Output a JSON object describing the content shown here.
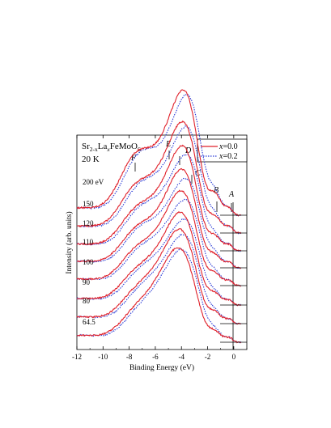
{
  "chart_data": {
    "type": "line",
    "title": "Sr2-xLaxFeMoO6",
    "title_parts": {
      "base1": "Sr",
      "sub1": "2-x",
      "base2": "La",
      "sub2": "x",
      "base3": "FeMoO",
      "sub3": "6"
    },
    "temperature": "20 K",
    "xlabel": "Binding Energy (eV)",
    "ylabel": "Intensity (arb. units)",
    "xlim": [
      -12,
      1
    ],
    "x_ticks": [
      "-12",
      "-10",
      "-8",
      "-6",
      "-4",
      "-2",
      "0"
    ],
    "x_tick_values": [
      -12,
      -10,
      -8,
      -6,
      -4,
      -2,
      0
    ],
    "x_reversed": false,
    "grid": false,
    "legend_placement": "top-right",
    "series": [
      {
        "name": "x=0.0",
        "name_var": "x",
        "name_val": "=0.0",
        "color": "#e0202a",
        "style": "solid"
      },
      {
        "name": "x=0.2",
        "name_var": "x",
        "name_val": "=0.2",
        "color": "#2a3bd6",
        "style": "dotted"
      }
    ],
    "spectra": [
      {
        "label": "200 eV",
        "features": {
          "F": 0.78,
          "E": 0.92,
          "D": 0.88,
          "C": 0.62,
          "B": 0.28,
          "A": 0.1
        },
        "diff": 0.04
      },
      {
        "label": "150",
        "features": {
          "F": 0.62,
          "E": 0.92,
          "D": 0.82,
          "C": 0.52,
          "B": 0.22,
          "A": 0.1
        },
        "diff": 0.05
      },
      {
        "label": "120",
        "features": {
          "F": 0.55,
          "E": 0.9,
          "D": 0.8,
          "C": 0.48,
          "B": 0.2,
          "A": 0.1
        },
        "diff": 0.09
      },
      {
        "label": "110",
        "features": {
          "F": 0.52,
          "E": 0.9,
          "D": 0.76,
          "C": 0.44,
          "B": 0.18,
          "A": 0.09
        },
        "diff": 0.1
      },
      {
        "label": "100",
        "features": {
          "F": 0.48,
          "E": 0.92,
          "D": 0.7,
          "C": 0.4,
          "B": 0.17,
          "A": 0.08
        },
        "diff": 0.1
      },
      {
        "label": "90",
        "features": {
          "F": 0.44,
          "E": 0.95,
          "D": 0.66,
          "C": 0.36,
          "B": 0.16,
          "A": 0.08
        },
        "diff": 0.08
      },
      {
        "label": "80",
        "features": {
          "F": 0.42,
          "E": 1.0,
          "D": 0.62,
          "C": 0.32,
          "B": 0.15,
          "A": 0.07
        },
        "diff": 0.06
      },
      {
        "label": "64.5",
        "features": {
          "F": 0.4,
          "E": 1.05,
          "D": 0.55,
          "C": 0.28,
          "B": 0.14,
          "A": 0.07
        },
        "diff": 0.02
      }
    ],
    "feature_labels": [
      {
        "name": "F",
        "energy": -7.5
      },
      {
        "name": "E",
        "energy": -5.2
      },
      {
        "name": "D",
        "energy": -3.9
      },
      {
        "name": "C",
        "energy": -3.2
      },
      {
        "name": "B",
        "energy": -1.4
      },
      {
        "name": "A",
        "energy": -0.2
      }
    ]
  }
}
